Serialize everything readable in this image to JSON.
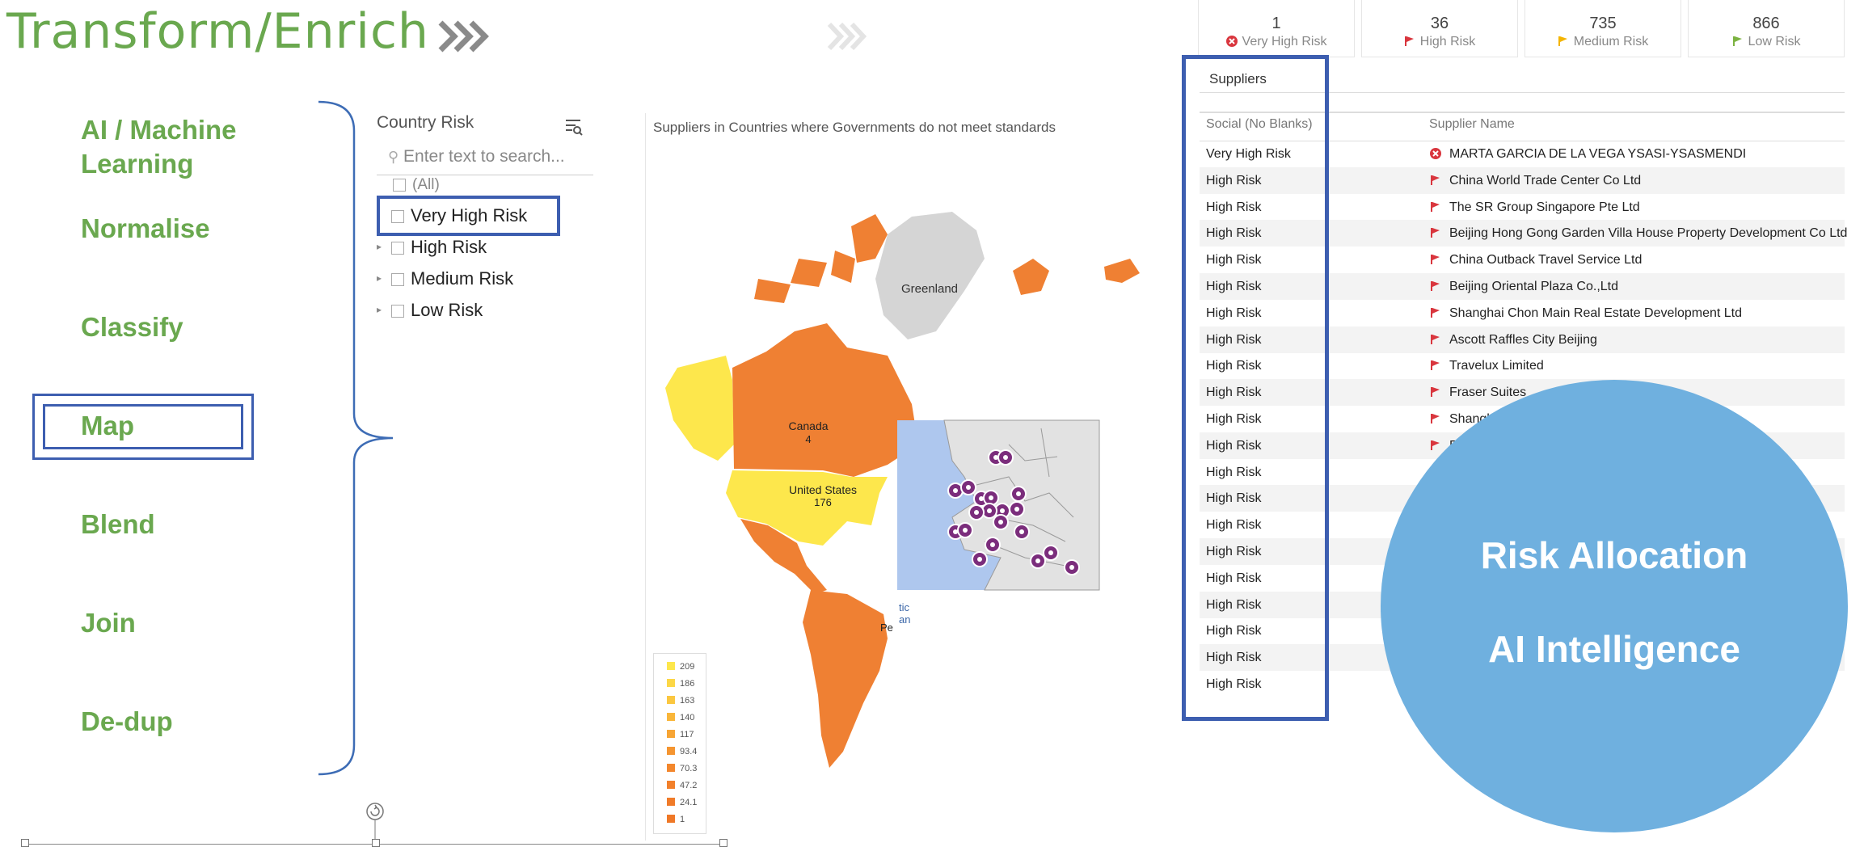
{
  "slide": {
    "title": "Transform/Enrich",
    "steps": [
      "AI / Machine\nLearning",
      "Normalise",
      "Classify",
      "Map",
      "Blend",
      "Join",
      "De-dup"
    ],
    "accent_color": "#6aa84f",
    "highlight_color": "#3d5eb0"
  },
  "filter": {
    "title": "Country Risk",
    "search_placeholder": "Enter text to search...",
    "items": [
      "(All)",
      "Very High Risk",
      "High Risk",
      "Medium Risk",
      "Low Risk"
    ],
    "icon": "filter-settings-icon"
  },
  "map": {
    "caption": "Suppliers in Countries where Governments do not meet standards",
    "labels": {
      "greenland": "Greenland",
      "canada": "Canada",
      "canada_count": "4",
      "usa": "United States",
      "usa_count": "176",
      "pe": "Pe",
      "tic": "tic",
      "an": "an"
    },
    "legend": [
      "209",
      "186",
      "163",
      "140",
      "117",
      "93.4",
      "70.3",
      "47.2",
      "24.1",
      "1"
    ],
    "legend_colors": [
      "#fde74c",
      "#fcd746",
      "#fbc740",
      "#f9b63a",
      "#f7a535",
      "#f59530",
      "#f3872d",
      "#f2802b",
      "#f07b29",
      "#ef7827"
    ]
  },
  "kpis": [
    {
      "value": "1",
      "label": "Very High Risk",
      "icon": "x-circle-icon",
      "color": "#d9363e"
    },
    {
      "value": "36",
      "label": "High Risk",
      "icon": "red-flag-icon",
      "color": "#d9363e"
    },
    {
      "value": "735",
      "label": "Medium Risk",
      "icon": "yellow-flag-icon",
      "color": "#f4b400"
    },
    {
      "value": "866",
      "label": "Low Risk",
      "icon": "green-flag-icon",
      "color": "#7cb342"
    }
  ],
  "table": {
    "title": "Suppliers",
    "columns": [
      "Social (No Blanks)",
      "Supplier Name"
    ],
    "rows": [
      [
        "Very High Risk",
        "MARTA GARCIA DE LA VEGA YSASI-YSASMENDI"
      ],
      [
        "High Risk",
        "China World Trade Center Co Ltd"
      ],
      [
        "High Risk",
        "The SR Group Singapore Pte Ltd"
      ],
      [
        "High Risk",
        "Beijing Hong Gong Garden Villa House Property Development Co Ltd"
      ],
      [
        "High Risk",
        "China Outback Travel Service Ltd"
      ],
      [
        "High Risk",
        "Beijing Oriental Plaza Co.,Ltd"
      ],
      [
        "High Risk",
        "Shanghai Chon Main Real Estate Development Ltd"
      ],
      [
        "High Risk",
        "Ascott Raffles City Beijing"
      ],
      [
        "High Risk",
        "Travelux Limited"
      ],
      [
        "High Risk",
        "Fraser Suites"
      ],
      [
        "High Risk",
        "Shanghai"
      ],
      [
        "High Risk",
        "Fuji"
      ],
      [
        "High Risk",
        ""
      ],
      [
        "High Risk",
        ""
      ],
      [
        "High Risk",
        ""
      ],
      [
        "High Risk",
        ""
      ],
      [
        "High Risk",
        ""
      ],
      [
        "High Risk",
        ""
      ],
      [
        "High Risk",
        ""
      ],
      [
        "High Risk",
        ""
      ],
      [
        "High Risk",
        ""
      ]
    ]
  },
  "circle": {
    "line1": "Risk Allocation",
    "line2": "AI Intelligence",
    "color": "#6fb0df"
  }
}
